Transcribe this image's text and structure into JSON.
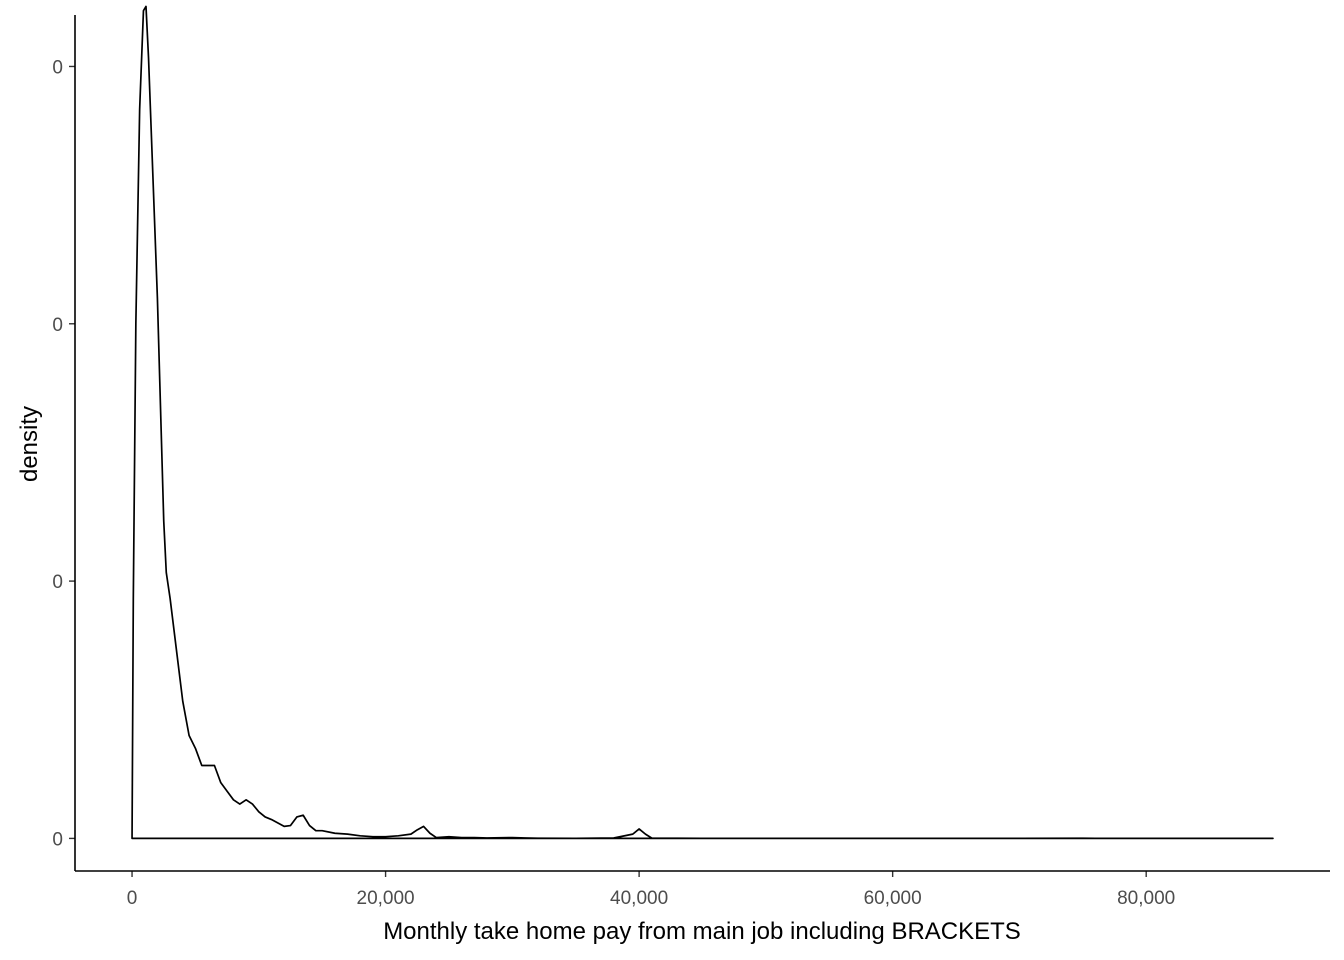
{
  "chart_data": {
    "type": "line",
    "title": "",
    "xlabel": "Monthly take home pay from main job including BRACKETS",
    "ylabel": "density",
    "xlim": [
      -4500,
      94500
    ],
    "ylim": [
      -3.8e-06,
      9.6e-05
    ],
    "x_ticks": [
      {
        "value": 0,
        "label": "0"
      },
      {
        "value": 20000,
        "label": "20,000"
      },
      {
        "value": 40000,
        "label": "40,000"
      },
      {
        "value": 60000,
        "label": "60,000"
      },
      {
        "value": 80000,
        "label": "80,000"
      }
    ],
    "y_ticks": [
      {
        "value": 0,
        "label": "0"
      },
      {
        "value": 3e-05,
        "label": "0"
      },
      {
        "value": 6e-05,
        "label": "0"
      },
      {
        "value": 9e-05,
        "label": "0"
      }
    ],
    "grid": false,
    "series": [
      {
        "x": [
          0,
          100,
          300,
          600,
          900,
          1100,
          1300,
          1600,
          2000,
          2500,
          2700,
          3000,
          3500,
          4000,
          4500,
          5000,
          5500,
          6000,
          6500,
          7000,
          7500,
          8000,
          8500,
          9000,
          9500,
          10000,
          10500,
          11000,
          12000,
          12500,
          13000,
          13500,
          14000,
          14500,
          15000,
          16000,
          17000,
          18000,
          19000,
          20000,
          21000,
          22000,
          22500,
          23000,
          23500,
          24000,
          25000,
          26000,
          27000,
          28000,
          30000,
          31000,
          32000,
          35000,
          38000,
          39500,
          40000,
          40500,
          41000,
          45000,
          50000,
          60000,
          70000,
          75000,
          76000,
          80000,
          90000
        ],
        "y": [
          0,
          2.8e-05,
          6e-05,
          8.5e-05,
          9.65e-05,
          9.7e-05,
          9.1e-05,
          7.9e-05,
          6.3e-05,
          3.7e-05,
          3.1e-05,
          2.8e-05,
          2.2e-05,
          1.6e-05,
          1.2e-05,
          1.05e-05,
          8.5e-06,
          8.5e-06,
          8.5e-06,
          6.5e-06,
          5.5e-06,
          4.5e-06,
          4e-06,
          4.5e-06,
          4e-06,
          3.1e-06,
          2.5e-06,
          2.2e-06,
          1.4e-06,
          1.5e-06,
          2.5e-06,
          2.7e-06,
          1.5e-06,
          9e-07,
          9e-07,
          6e-07,
          5e-07,
          3e-07,
          2e-07,
          2e-07,
          3e-07,
          5e-07,
          1e-06,
          1.4e-06,
          6e-07,
          1e-07,
          2e-07,
          1e-07,
          1e-07,
          5e-08,
          1e-07,
          5e-08,
          2e-08,
          1e-08,
          5e-08,
          5e-07,
          1.1e-06,
          5e-07,
          3e-08,
          1e-08,
          0,
          0,
          0,
          2e-08,
          0,
          0,
          0
        ]
      }
    ]
  }
}
